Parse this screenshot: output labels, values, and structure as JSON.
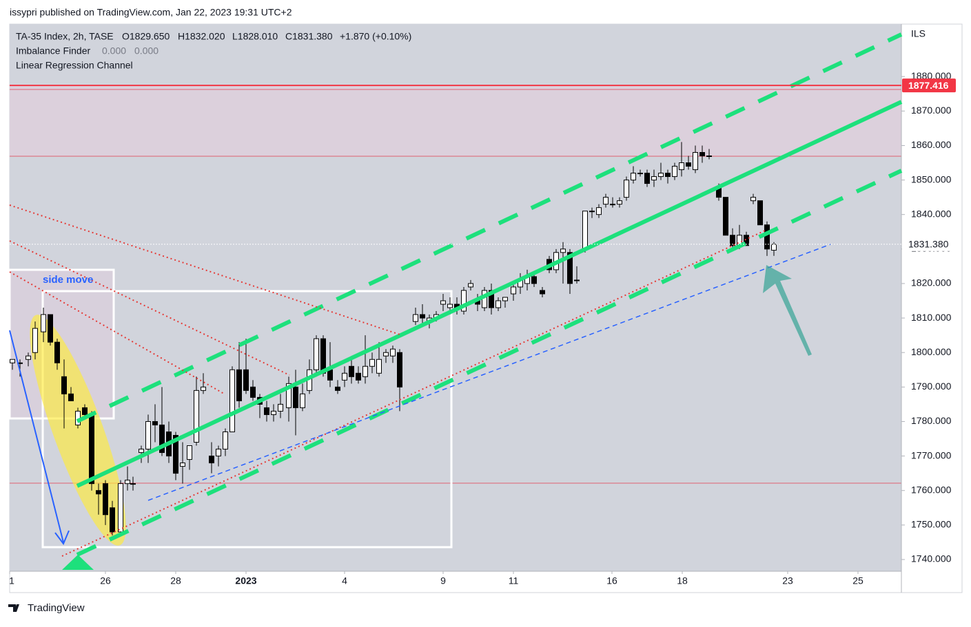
{
  "page": {
    "header": "issypri published on TradingView.com, Jan 22, 2023 19:31 UTC+2",
    "footer": "TradingView"
  },
  "chart_data": {
    "type": "candlestick",
    "title": "TA-35 Index, 2h, TASE",
    "ohlc_labels": [
      "O1829.650",
      "H1832.020",
      "L1828.010",
      "C1831.380",
      "+1.870 (+0.10%)"
    ],
    "indicators": [
      {
        "name": "Imbalance Finder",
        "texts": [
          "0.000",
          "0.000"
        ]
      },
      {
        "name": "Linear Regression Channel"
      }
    ],
    "currency": "ILS",
    "annotations": [
      "side move"
    ],
    "up_color": "#ffffff",
    "down_color": "#000000",
    "xlim": [
      0,
      129.4
    ],
    "xticks": [
      {
        "value": 0,
        "label": "1"
      },
      {
        "value": 13.9,
        "label": "26"
      },
      {
        "value": 24.1,
        "label": "28"
      },
      {
        "value": 34.3,
        "label": "2023"
      },
      {
        "value": 48.6,
        "label": "4"
      },
      {
        "value": 62.9,
        "label": "9"
      },
      {
        "value": 73.1,
        "label": "11"
      },
      {
        "value": 87.4,
        "label": "16"
      },
      {
        "value": 97.6,
        "label": "18"
      },
      {
        "value": 112.9,
        "label": "23"
      },
      {
        "value": 123.1,
        "label": "25"
      }
    ],
    "ylim": [
      1736.6,
      1895.2
    ],
    "yticks": [
      {
        "value": 1740,
        "label": "1740.000"
      },
      {
        "value": 1750,
        "label": "1750.000"
      },
      {
        "value": 1760,
        "label": "1760.000"
      },
      {
        "value": 1770,
        "label": "1770.000"
      },
      {
        "value": 1780,
        "label": "1780.000"
      },
      {
        "value": 1790,
        "label": "1790.000"
      },
      {
        "value": 1800,
        "label": "1800.000"
      },
      {
        "value": 1810,
        "label": "1810.000"
      },
      {
        "value": 1820,
        "label": "1820.000"
      },
      {
        "value": 1830,
        "label": "1830.000"
      },
      {
        "value": 1840,
        "label": "1840.000"
      },
      {
        "value": 1850,
        "label": "1850.000"
      },
      {
        "value": 1860,
        "label": "1860.000"
      },
      {
        "value": 1870,
        "label": "1870.000"
      },
      {
        "value": 1880,
        "label": "1880.000"
      }
    ],
    "price_labels": [
      {
        "value": 1877.416,
        "label": "1877.416",
        "color": "#f23645"
      },
      {
        "value": 1831.38,
        "label": "1831.380",
        "color": "#ffffff"
      }
    ],
    "x": [
      0.4,
      1.5,
      2.7,
      3.7,
      4.9,
      5.9,
      6.9,
      7.9,
      8.9,
      9.9,
      10.9,
      11.9,
      12.9,
      13.9,
      14.9,
      16.1,
      17.1,
      17.9,
      19.1,
      20.1,
      21.1,
      22.1,
      23.1,
      24.1,
      25.1,
      26.1,
      27.1,
      28.1,
      29.3,
      30.3,
      31.3,
      32.3,
      33.3,
      34.3,
      35.3,
      36.3,
      37.3,
      38.3,
      39.3,
      40.5,
      41.5,
      42.5,
      43.5,
      44.5,
      45.5,
      46.5,
      47.6,
      48.6,
      49.6,
      50.6,
      51.6,
      52.6,
      53.6,
      54.6,
      55.6,
      56.6,
      58.9,
      59.9,
      60.9,
      61.9,
      62.9,
      63.9,
      64.9,
      65.9,
      66.9,
      67.9,
      68.9,
      69.9,
      70.9,
      71.9,
      73.1,
      74.1,
      75.1,
      76.1,
      77.3,
      78.3,
      79.3,
      80.3,
      81.3,
      82.3,
      83.5,
      84.5,
      85.5,
      86.5,
      87.5,
      88.5,
      89.5,
      90.5,
      91.5,
      92.5,
      93.5,
      94.5,
      95.5,
      96.5,
      97.5,
      98.5,
      99.5,
      100.5,
      101.5,
      102.9,
      103.9,
      104.9,
      105.9,
      106.9,
      107.9,
      108.9,
      109.9,
      110.9
    ],
    "open": [
      1797,
      1797,
      1798,
      1800,
      1806,
      1811,
      1803,
      1793,
      1788,
      1779,
      1784,
      1782,
      1760,
      1762,
      1755,
      1748,
      1762,
      1762,
      1771,
      1772,
      1780,
      1779,
      1777,
      1776,
      1767,
      1769,
      1774,
      1789,
      1770,
      1770,
      1772,
      1777,
      1795,
      1795,
      1790,
      1787,
      1784,
      1782,
      1783,
      1784,
      1790,
      1784,
      1789,
      1795,
      1804,
      1795,
      1790,
      1792,
      1796,
      1794,
      1793,
      1796,
      1794,
      1799,
      1799,
      1800,
      1809,
      1811,
      1809,
      1810,
      1814,
      1813,
      1814,
      1812,
      1819,
      1815,
      1813,
      1818,
      1813,
      1815,
      1817,
      1819,
      1820,
      1822,
      1818,
      1827,
      1824,
      1829,
      1829,
      1821,
      1830,
      1841,
      1840,
      1843,
      1843,
      1843,
      1845,
      1850,
      1852,
      1852,
      1850,
      1851,
      1852,
      1851,
      1853,
      1855,
      1853,
      1858,
      1857,
      1848,
      1845,
      1834,
      1831,
      1834,
      1844,
      1844,
      1837,
      1829.65
    ],
    "high": [
      1798,
      1798,
      1800,
      1809,
      1813,
      1811,
      1804,
      1798,
      1790,
      1784,
      1785,
      1783,
      1762,
      1763,
      1757,
      1763,
      1767,
      1764,
      1773,
      1782,
      1785,
      1790,
      1780,
      1777,
      1774,
      1773,
      1793,
      1794,
      1774,
      1773,
      1778,
      1796,
      1803,
      1804,
      1792,
      1788,
      1786,
      1785,
      1788,
      1793,
      1795,
      1791,
      1798,
      1805,
      1805,
      1803,
      1792,
      1796,
      1799,
      1796,
      1805,
      1800,
      1803,
      1801,
      1802,
      1801,
      1813,
      1814,
      1811,
      1812,
      1817,
      1816,
      1816,
      1819,
      1821,
      1817,
      1819,
      1820,
      1816,
      1816,
      1820,
      1823,
      1824,
      1823,
      1819,
      1828,
      1830,
      1832,
      1830,
      1825,
      1841,
      1842,
      1843,
      1846,
      1845,
      1845,
      1851,
      1854,
      1853,
      1853,
      1853,
      1855,
      1853,
      1855,
      1861,
      1857,
      1860,
      1860,
      1859,
      1849,
      1845,
      1836,
      1837,
      1835,
      1846,
      1844,
      1838,
      1832.02
    ],
    "low": [
      1795,
      1793,
      1796,
      1798,
      1803,
      1802,
      1795,
      1778,
      1786,
      1778,
      1781,
      1760,
      1753,
      1750,
      1747,
      1747,
      1760,
      1760,
      1768,
      1768,
      1774,
      1770,
      1768,
      1763,
      1762,
      1766,
      1773,
      1788,
      1765,
      1767,
      1770,
      1777,
      1784,
      1788,
      1786,
      1781,
      1780,
      1780,
      1781,
      1780,
      1776,
      1783,
      1788,
      1793,
      1793,
      1790,
      1788,
      1790,
      1791,
      1791,
      1791,
      1794,
      1793,
      1797,
      1797,
      1783,
      1808,
      1808,
      1807,
      1809,
      1812,
      1811,
      1811,
      1811,
      1818,
      1812,
      1812,
      1811,
      1812,
      1813,
      1815,
      1817,
      1818,
      1819,
      1816,
      1823,
      1823,
      1820,
      1817,
      1820,
      1829,
      1839,
      1839,
      1842,
      1842,
      1842,
      1844,
      1849,
      1851,
      1848,
      1848,
      1850,
      1849,
      1850,
      1851,
      1853,
      1852,
      1855,
      1856,
      1844,
      1834,
      1830,
      1830,
      1831,
      1843,
      1837,
      1828,
      1828.01
    ],
    "close": [
      1798,
      1797,
      1799,
      1807,
      1811,
      1803,
      1797,
      1788,
      1786,
      1783,
      1782,
      1762,
      1759,
      1753,
      1748,
      1762,
      1763,
      1762,
      1772,
      1780,
      1779,
      1771,
      1770,
      1765,
      1768,
      1773,
      1789,
      1790,
      1768,
      1772,
      1777,
      1795,
      1786,
      1789,
      1787,
      1785,
      1782,
      1783,
      1785,
      1791,
      1784,
      1788,
      1795,
      1804,
      1794,
      1792,
      1789,
      1794,
      1793,
      1792,
      1796,
      1798,
      1798,
      1800,
      1801,
      1790,
      1811,
      1810,
      1810,
      1811,
      1815,
      1814,
      1813,
      1818,
      1820,
      1814,
      1818,
      1813,
      1815,
      1816,
      1819,
      1821,
      1822,
      1820,
      1817,
      1824,
      1829,
      1830,
      1820,
      1821,
      1841,
      1841,
      1842,
      1845,
      1843,
      1844,
      1850,
      1852,
      1852,
      1849,
      1851,
      1852,
      1851,
      1854,
      1855,
      1854,
      1858,
      1857,
      1857,
      1845,
      1834,
      1831,
      1834,
      1831,
      1845,
      1837,
      1830,
      1831.38
    ]
  }
}
